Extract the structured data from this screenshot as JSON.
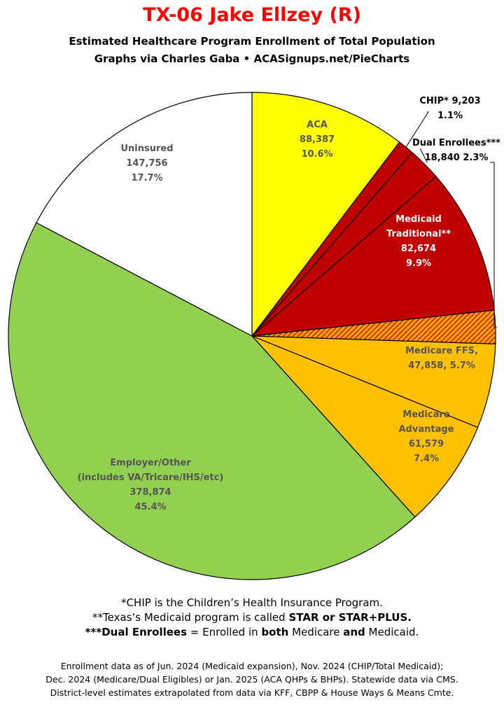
{
  "title": "TX-06 Jake Ellzey (R)",
  "subtitle": {
    "line1": "Estimated Healthcare Program Enrollment of Total Population",
    "line2": "Graphs via Charles Gaba   •   ACASignups.net/PieCharts"
  },
  "chart_data": {
    "type": "pie",
    "slices": [
      {
        "label": "ACA",
        "value": 88387,
        "percent": "10.6%",
        "value_text": "88,387",
        "color": "#ffff00",
        "label_color": "#555555",
        "label_lines": [
          "ACA",
          "88,387",
          "10.6%"
        ]
      },
      {
        "label": "CHIP*",
        "value": 9203,
        "percent": "1.1%",
        "value_text": "9,203",
        "color": "#c00000",
        "label_color": "#000000",
        "label_lines": [
          "CHIP* 9,203",
          "1.1%"
        ]
      },
      {
        "label": "Dual Enrollees***",
        "value": 18840,
        "percent": "2.3%",
        "value_text": "18,840",
        "color": "#c00000",
        "label_color": "#000000",
        "label_lines": [
          "Dual Enrollees***",
          "18,840 2.3%"
        ]
      },
      {
        "label": "Medicaid Traditional**",
        "value": 82674,
        "percent": "9.9%",
        "value_text": "82,674",
        "color": "#c00000",
        "label_color": "#ffffff",
        "label_lines": [
          "Medicaid",
          "Traditional**",
          "82,674",
          "9.9%"
        ]
      },
      {
        "label": "Dual Enrollees (hatched)",
        "value": 18840,
        "percent": "2.3%",
        "color": "#ffa500",
        "hatch_color": "#c00000",
        "label_lines": []
      },
      {
        "label": "Medicare FFS",
        "value": 47858,
        "percent": "5.7%",
        "value_text": "47,858",
        "color": "#ffc000",
        "label_color": "#555555",
        "label_lines": [
          "Medicare FFS,",
          "47,858, 5.7%"
        ]
      },
      {
        "label": "Medicare Advantage",
        "value": 61579,
        "percent": "7.4%",
        "value_text": "61,579",
        "color": "#ffc000",
        "label_color": "#555555",
        "label_lines": [
          "Medicare",
          "Advantage",
          "61,579",
          "7.4%"
        ]
      },
      {
        "label": "Employer/Other (includes VA/Tricare/IHS/etc)",
        "value": 378874,
        "percent": "45.4%",
        "value_text": "378,874",
        "color": "#92d050",
        "label_color": "#555555",
        "label_lines": [
          "Employer/Other",
          "(includes VA/Tricare/IHS/etc)",
          "378,874",
          "45.4%"
        ]
      },
      {
        "label": "Uninsured",
        "value": 147756,
        "percent": "17.7%",
        "value_text": "147,756",
        "color": "#ffffff",
        "label_color": "#555555",
        "label_lines": [
          "Uninsured",
          "147,756",
          "17.7%"
        ]
      }
    ]
  },
  "footnotes": {
    "chip": "*CHIP is the Children’s Health Insurance Program.",
    "medicaid_pre": "**Texas’s Medicaid program is called ",
    "medicaid_bold": "STAR or STAR+PLUS.",
    "dual_bold": "***Dual Enrollees",
    "dual_mid1": " = Enrolled in ",
    "dual_both": "both",
    "dual_mid2": " Medicare ",
    "dual_and": "and",
    "dual_end": " Medicaid."
  },
  "sources": {
    "line1": "Enrollment data as of Jun. 2024 (Medicaid expansion), Nov. 2024 (CHIP/Total Medicaid);",
    "line2": "Dec. 2024 (Medicare/Dual Eligibles) or Jan. 2025 (ACA QHPs & BHPs). Statewide data via CMS.",
    "line3": "District-level estimates extrapolated from data via KFF, CBPP & House Ways & Means Cmte."
  }
}
